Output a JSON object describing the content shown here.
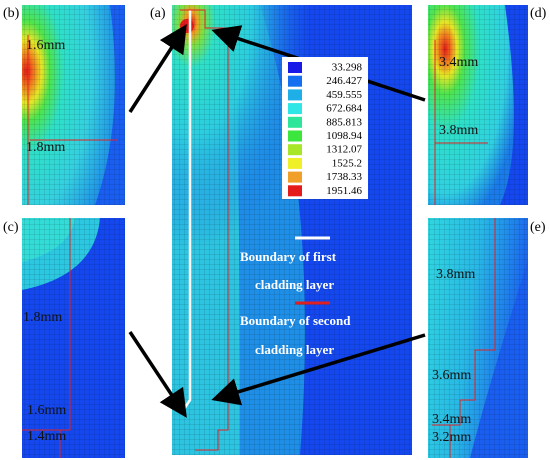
{
  "panels": {
    "a": "(a)",
    "b": "(b)",
    "c": "(c)",
    "d": "(d)",
    "e": "(e)"
  },
  "legend": {
    "values": [
      "33.298",
      "246.427",
      "459.555",
      "672.684",
      "885.813",
      "1098.94",
      "1312.07",
      "1525.2",
      "1738.33",
      "1951.46"
    ]
  },
  "boundaries": {
    "first": [
      "Boundary of first",
      "cladding layer"
    ],
    "second": [
      "Boundary of second",
      "cladding layer"
    ]
  },
  "annotations": {
    "b": [
      "1.6mm",
      "1.8mm"
    ],
    "c": [
      "1.8mm",
      "1.6mm",
      "1.4mm"
    ],
    "d": [
      "3.4mm",
      "3.8mm"
    ],
    "e": [
      "3.8mm",
      "3.6mm",
      "3.4mm",
      "3.2mm"
    ]
  }
}
